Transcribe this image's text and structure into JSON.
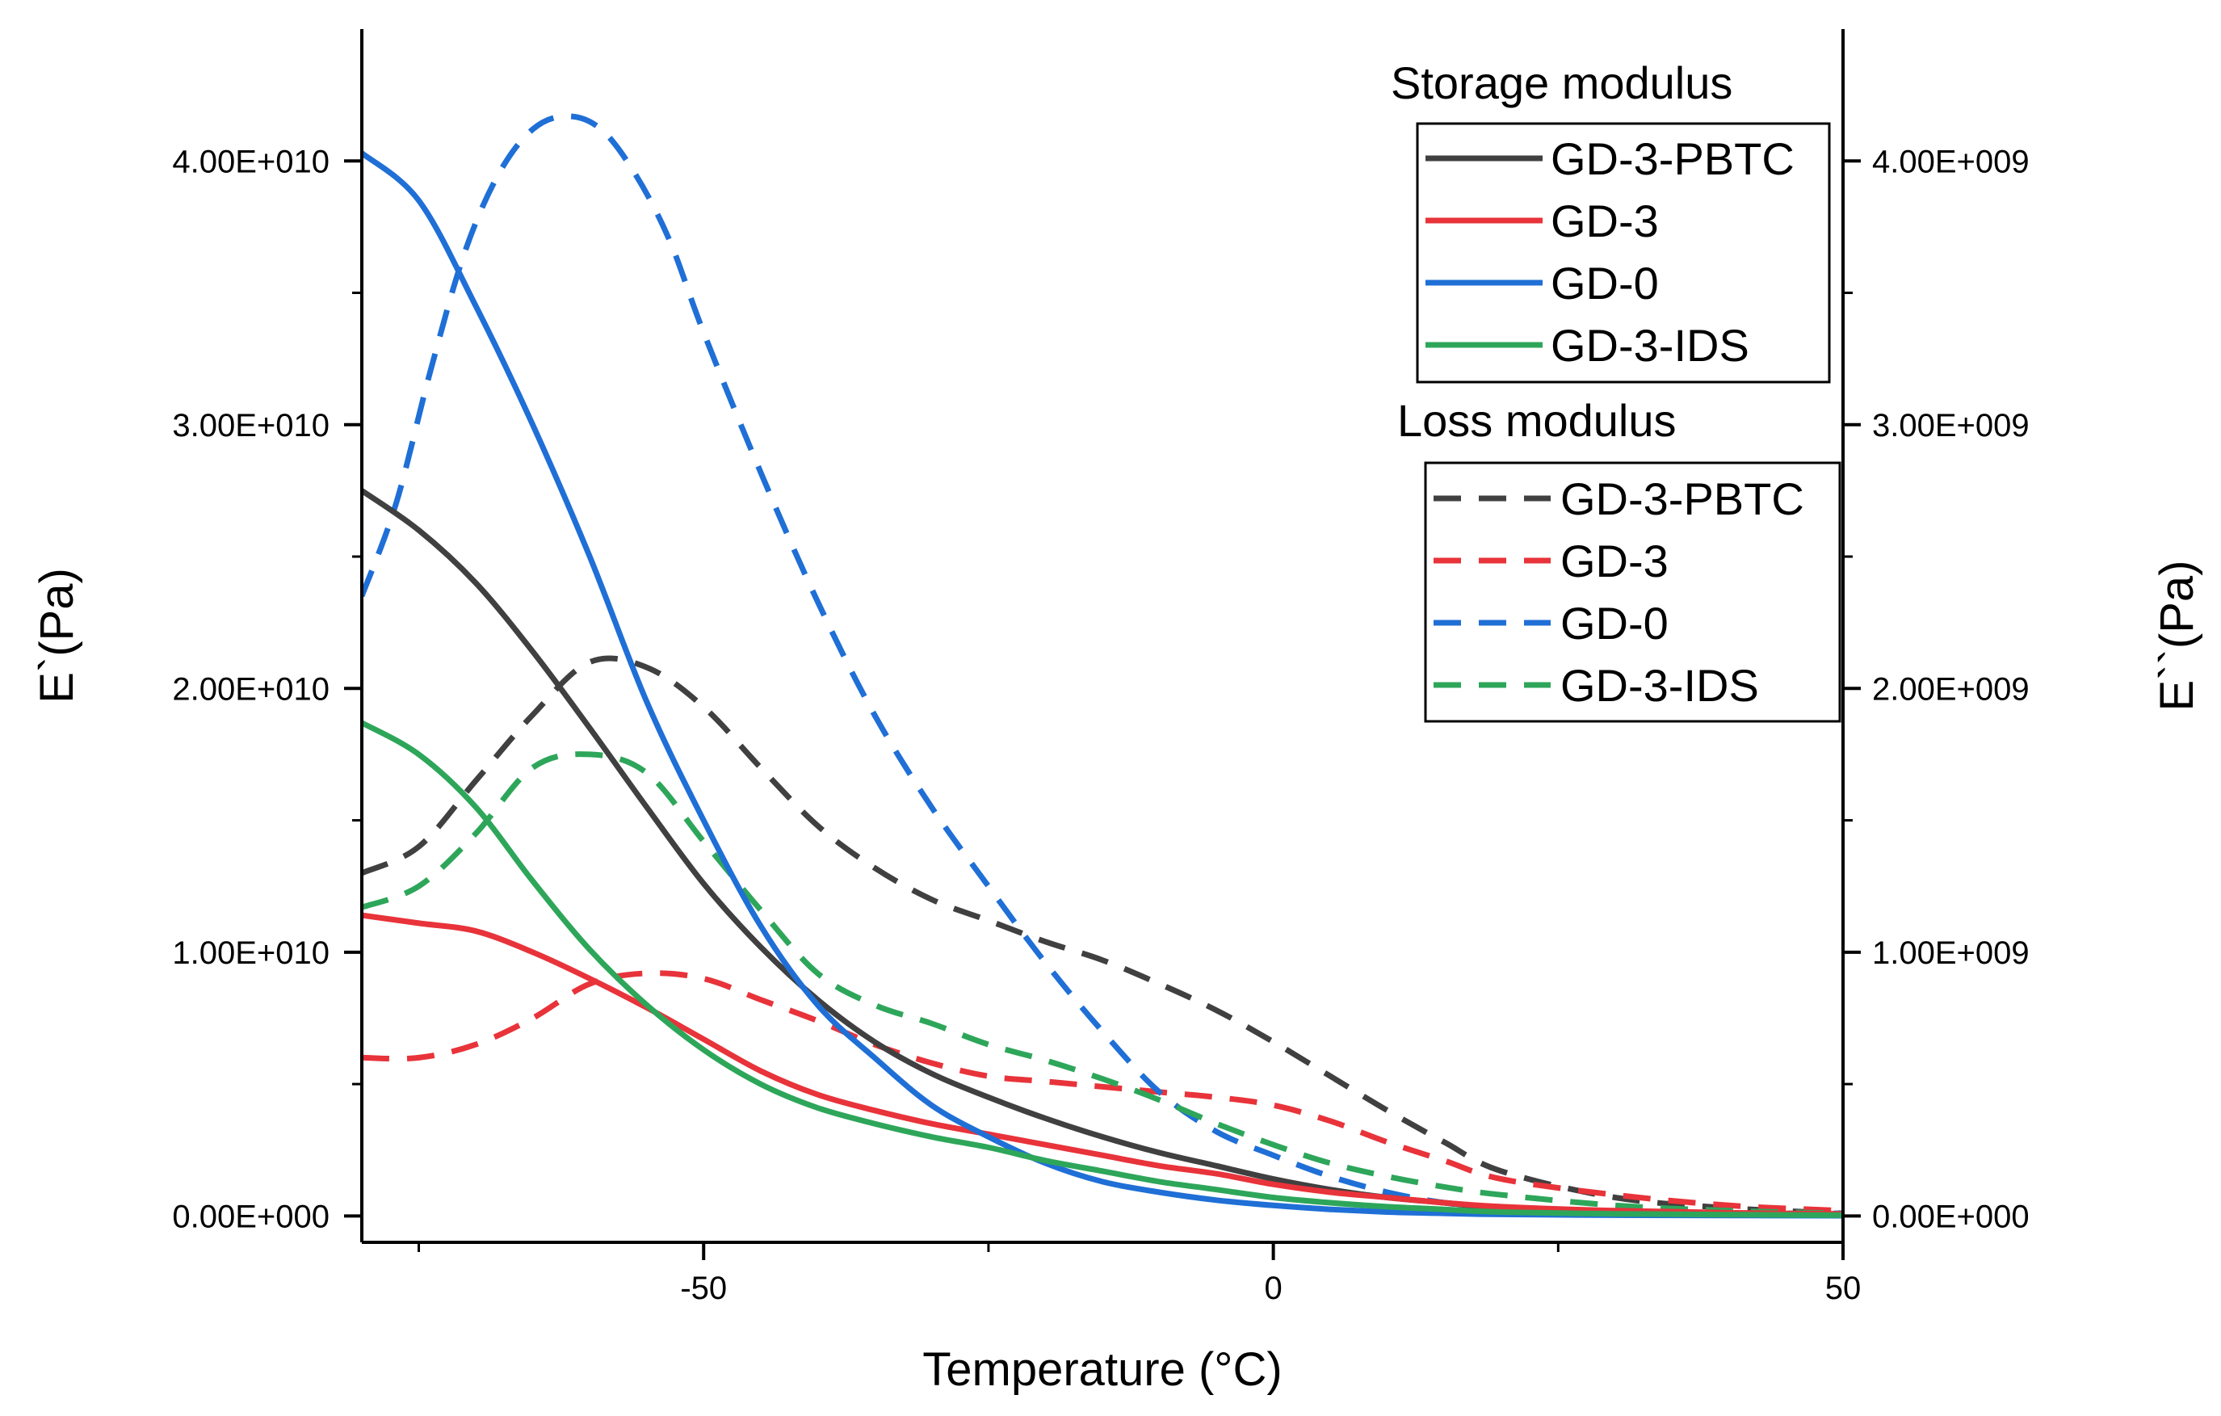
{
  "chart_data": {
    "type": "line",
    "xlabel": "Temperature (°C)",
    "ylabel_left": "E`(Pa)",
    "ylabel_right": "E``(Pa)",
    "xlim": [
      -80,
      50
    ],
    "ylim_left": [
      -1000000000,
      45000000000
    ],
    "ylim_right": [
      -100000000,
      4500000000
    ],
    "x_ticks": [
      -50,
      0,
      50
    ],
    "x_tick_labels": [
      "-50",
      "0",
      "50"
    ],
    "y_left_ticks": [
      0,
      10000000000,
      20000000000,
      30000000000,
      40000000000
    ],
    "y_left_tick_labels": [
      "0.00E+000",
      "1.00E+010",
      "2.00E+010",
      "3.00E+010",
      "4.00E+010"
    ],
    "y_right_ticks": [
      0,
      1000000000,
      2000000000,
      3000000000,
      4000000000
    ],
    "y_right_tick_labels": [
      "0.00E+000",
      "1.00E+009",
      "2.00E+009",
      "3.00E+009",
      "4.00E+009"
    ],
    "grid": false,
    "legend_placement": "top-right",
    "colors": {
      "GD-3-PBTC": "#404040",
      "GD-3": "#e8333a",
      "GD-0": "#1f6fd6",
      "GD-3-IDS": "#2ea65a"
    },
    "legends": [
      {
        "title": "Storage modulus",
        "style": "solid",
        "entries": [
          "GD-3-PBTC",
          "GD-3",
          "GD-0",
          "GD-3-IDS"
        ]
      },
      {
        "title": "Loss modulus",
        "style": "dashed",
        "entries": [
          "GD-3-PBTC",
          "GD-3",
          "GD-0",
          "GD-3-IDS"
        ]
      }
    ],
    "storage_series": [
      {
        "name": "GD-3-PBTC",
        "axis": "left",
        "x": [
          -80,
          -75,
          -70,
          -65,
          -60,
          -55,
          -50,
          -45,
          -40,
          -35,
          -30,
          -25,
          -20,
          -15,
          -10,
          -5,
          0,
          5,
          10,
          15,
          20,
          30,
          40,
          50
        ],
        "y": [
          27500000000,
          26000000000,
          24000000000,
          21400000000,
          18500000000,
          15500000000,
          12600000000,
          10200000000,
          8200000000,
          6600000000,
          5400000000,
          4500000000,
          3700000000,
          3000000000,
          2400000000,
          1900000000,
          1400000000,
          1000000000,
          700000000,
          500000000,
          300000000,
          150000000,
          80000000,
          50000000
        ]
      },
      {
        "name": "GD-3",
        "axis": "left",
        "x": [
          -80,
          -75,
          -70,
          -65,
          -60,
          -55,
          -50,
          -45,
          -40,
          -35,
          -30,
          -25,
          -20,
          -15,
          -10,
          -5,
          0,
          5,
          10,
          15,
          20,
          30,
          40,
          50
        ],
        "y": [
          11400000000,
          11100000000,
          10800000000,
          10000000000,
          9000000000,
          7900000000,
          6700000000,
          5500000000,
          4600000000,
          4000000000,
          3500000000,
          3100000000,
          2700000000,
          2300000000,
          1900000000,
          1600000000,
          1200000000,
          900000000,
          700000000,
          500000000,
          350000000,
          200000000,
          120000000,
          80000000
        ]
      },
      {
        "name": "GD-0",
        "axis": "left",
        "x": [
          -80,
          -75,
          -70,
          -65,
          -60,
          -55,
          -50,
          -45,
          -40,
          -35,
          -30,
          -25,
          -20,
          -15,
          -10,
          -5,
          0,
          5,
          10,
          15,
          20,
          30,
          40,
          50
        ],
        "y": [
          40300000000,
          38500000000,
          34500000000,
          30000000000,
          25000000000,
          19500000000,
          15000000000,
          11000000000,
          8000000000,
          6000000000,
          4200000000,
          3000000000,
          2000000000,
          1300000000,
          900000000,
          600000000,
          400000000,
          250000000,
          150000000,
          100000000,
          60000000,
          30000000,
          20000000,
          10000000
        ]
      },
      {
        "name": "GD-3-IDS",
        "axis": "left",
        "x": [
          -80,
          -75,
          -70,
          -65,
          -60,
          -55,
          -50,
          -45,
          -40,
          -35,
          -30,
          -25,
          -20,
          -15,
          -10,
          -5,
          0,
          5,
          10,
          15,
          20,
          30,
          40,
          50
        ],
        "y": [
          18700000000,
          17500000000,
          15500000000,
          12700000000,
          10100000000,
          8000000000,
          6300000000,
          5000000000,
          4100000000,
          3500000000,
          3000000000,
          2600000000,
          2100000000,
          1700000000,
          1300000000,
          1000000000,
          700000000,
          500000000,
          350000000,
          250000000,
          150000000,
          80000000,
          50000000,
          30000000
        ]
      }
    ],
    "loss_series": [
      {
        "name": "GD-3-PBTC",
        "axis": "right",
        "x": [
          -80,
          -75,
          -70,
          -65,
          -60,
          -55,
          -50,
          -45,
          -40,
          -35,
          -30,
          -25,
          -20,
          -15,
          -10,
          -5,
          0,
          5,
          10,
          15,
          20,
          30,
          40,
          50
        ],
        "y": [
          1300000000,
          1400000000,
          1650000000,
          1900000000,
          2100000000,
          2080000000,
          1930000000,
          1700000000,
          1480000000,
          1320000000,
          1200000000,
          1120000000,
          1040000000,
          970000000,
          880000000,
          780000000,
          660000000,
          530000000,
          400000000,
          280000000,
          170000000,
          70000000,
          30000000,
          10000000
        ]
      },
      {
        "name": "GD-3",
        "axis": "right",
        "x": [
          -80,
          -75,
          -70,
          -65,
          -60,
          -55,
          -50,
          -45,
          -40,
          -35,
          -30,
          -25,
          -20,
          -15,
          -10,
          -5,
          0,
          5,
          10,
          15,
          20,
          30,
          40,
          50
        ],
        "y": [
          600000000,
          600000000,
          650000000,
          750000000,
          880000000,
          920000000,
          900000000,
          820000000,
          740000000,
          650000000,
          580000000,
          530000000,
          510000000,
          490000000,
          470000000,
          450000000,
          420000000,
          360000000,
          280000000,
          210000000,
          140000000,
          80000000,
          40000000,
          20000000
        ]
      },
      {
        "name": "GD-0",
        "axis": "right",
        "x": [
          -80,
          -77,
          -74,
          -71,
          -68,
          -65,
          -62,
          -59,
          -56,
          -53,
          -50,
          -45,
          -40,
          -35,
          -30,
          -25,
          -20,
          -15,
          -10,
          -5,
          0,
          5,
          10,
          15,
          20,
          30,
          40,
          50
        ],
        "y": [
          2350000000,
          2700000000,
          3200000000,
          3650000000,
          3950000000,
          4120000000,
          4170000000,
          4120000000,
          3950000000,
          3700000000,
          3350000000,
          2820000000,
          2330000000,
          1900000000,
          1550000000,
          1250000000,
          960000000,
          700000000,
          470000000,
          320000000,
          230000000,
          150000000,
          90000000,
          50000000,
          30000000,
          10000000,
          10000000,
          10000000
        ]
      },
      {
        "name": "GD-3-IDS",
        "axis": "right",
        "x": [
          -80,
          -75,
          -70,
          -65,
          -60,
          -55,
          -50,
          -45,
          -40,
          -35,
          -30,
          -25,
          -20,
          -15,
          -10,
          -5,
          0,
          5,
          10,
          15,
          20,
          30,
          40,
          50
        ],
        "y": [
          1170000000,
          1250000000,
          1450000000,
          1700000000,
          1750000000,
          1680000000,
          1420000000,
          1160000000,
          920000000,
          800000000,
          730000000,
          650000000,
          590000000,
          520000000,
          440000000,
          350000000,
          270000000,
          200000000,
          150000000,
          110000000,
          80000000,
          40000000,
          20000000,
          10000000
        ]
      }
    ]
  }
}
